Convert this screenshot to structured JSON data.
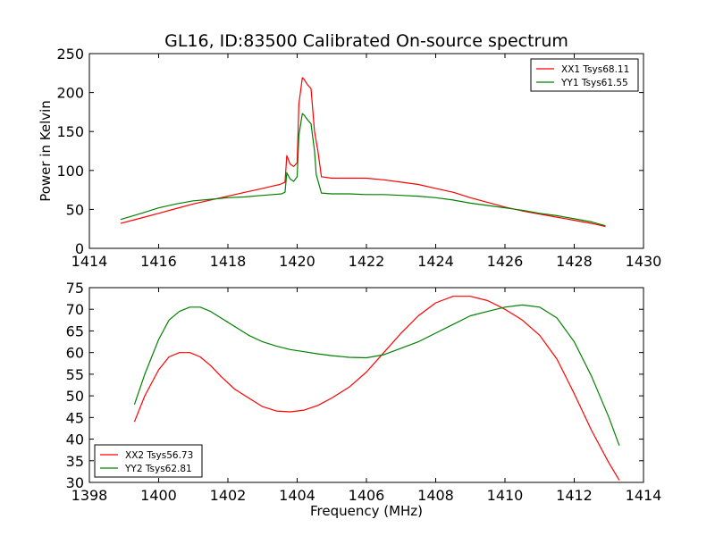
{
  "figure": {
    "title": "GL16, ID:83500 Calibrated On-source spectrum"
  },
  "chart_data": [
    {
      "type": "line",
      "title": "GL16, ID:83500 Calibrated On-source spectrum",
      "xlabel": "",
      "ylabel": "Power in Kelvin",
      "xlim": [
        1414,
        1430
      ],
      "ylim": [
        0,
        250
      ],
      "xticks": [
        1414,
        1416,
        1418,
        1420,
        1422,
        1424,
        1426,
        1428,
        1430
      ],
      "yticks": [
        0,
        50,
        100,
        150,
        200,
        250
      ],
      "grid": false,
      "legend_position": "upper right",
      "series": [
        {
          "name": "XX1 Tsys68.11",
          "color": "#ff0000",
          "x": [
            1414.9,
            1415.5,
            1416.0,
            1416.5,
            1417.0,
            1417.5,
            1418.0,
            1418.5,
            1419.0,
            1419.3,
            1419.5,
            1419.65,
            1419.7,
            1419.8,
            1419.9,
            1420.0,
            1420.05,
            1420.15,
            1420.2,
            1420.3,
            1420.4,
            1420.5,
            1420.6,
            1420.7,
            1421.0,
            1421.5,
            1422.0,
            1422.5,
            1423.0,
            1423.5,
            1424.0,
            1424.5,
            1425.0,
            1425.5,
            1426.0,
            1426.5,
            1427.0,
            1427.5,
            1428.0,
            1428.5,
            1428.9
          ],
          "y": [
            32,
            39,
            45,
            51,
            57,
            62,
            67,
            72,
            77,
            80,
            82,
            85,
            119,
            108,
            105,
            110,
            185,
            219,
            217,
            210,
            205,
            150,
            125,
            92,
            90,
            90,
            90,
            88,
            85,
            82,
            77,
            72,
            65,
            59,
            53,
            48,
            44,
            40,
            36,
            32,
            28
          ]
        },
        {
          "name": "YY1 Tsys61.55",
          "color": "#008000",
          "x": [
            1414.9,
            1415.5,
            1416.0,
            1416.5,
            1417.0,
            1417.5,
            1418.0,
            1418.5,
            1419.0,
            1419.3,
            1419.55,
            1419.65,
            1419.7,
            1419.8,
            1419.9,
            1420.0,
            1420.05,
            1420.15,
            1420.2,
            1420.3,
            1420.4,
            1420.5,
            1420.55,
            1420.7,
            1421.0,
            1421.5,
            1422.0,
            1422.5,
            1423.0,
            1423.5,
            1424.0,
            1424.5,
            1425.0,
            1425.5,
            1426.0,
            1426.5,
            1427.0,
            1427.5,
            1428.0,
            1428.5,
            1428.9
          ],
          "y": [
            37,
            45,
            52,
            57,
            61,
            63,
            65,
            66,
            68,
            69,
            70,
            72,
            97,
            89,
            86,
            92,
            145,
            173,
            171,
            165,
            160,
            125,
            95,
            71,
            70,
            70,
            69,
            69,
            68,
            67,
            65,
            62,
            58,
            55,
            52,
            49,
            45,
            42,
            38,
            34,
            29
          ]
        }
      ]
    },
    {
      "type": "line",
      "title": "",
      "xlabel": "Frequency (MHz)",
      "ylabel": "",
      "xlim": [
        1398,
        1414
      ],
      "ylim": [
        30,
        75
      ],
      "xticks": [
        1398,
        1400,
        1402,
        1404,
        1406,
        1408,
        1410,
        1412,
        1414
      ],
      "yticks": [
        30,
        35,
        40,
        45,
        50,
        55,
        60,
        65,
        70,
        75
      ],
      "grid": false,
      "legend_position": "lower left",
      "series": [
        {
          "name": "XX2 Tsys56.73",
          "color": "#ff0000",
          "x": [
            1399.3,
            1399.6,
            1400.0,
            1400.3,
            1400.6,
            1400.9,
            1401.2,
            1401.5,
            1401.8,
            1402.2,
            1402.6,
            1403.0,
            1403.4,
            1403.8,
            1404.2,
            1404.6,
            1405.0,
            1405.5,
            1406.0,
            1406.5,
            1407.0,
            1407.5,
            1408.0,
            1408.5,
            1409.0,
            1409.5,
            1410.0,
            1410.5,
            1411.0,
            1411.5,
            1412.0,
            1412.5,
            1413.0,
            1413.3
          ],
          "y": [
            44,
            50,
            56,
            59,
            60,
            60,
            59,
            57,
            54.5,
            51.5,
            49.5,
            47.5,
            46.5,
            46.3,
            46.7,
            47.8,
            49.5,
            52,
            55.5,
            60,
            64.5,
            68.5,
            71.5,
            73,
            73,
            72,
            70,
            67.5,
            64,
            58.5,
            50.5,
            42,
            34.5,
            30.5
          ]
        },
        {
          "name": "YY2 Tsys62.81",
          "color": "#008000",
          "x": [
            1399.3,
            1399.6,
            1400.0,
            1400.3,
            1400.6,
            1400.9,
            1401.2,
            1401.5,
            1401.8,
            1402.2,
            1402.6,
            1403.0,
            1403.4,
            1403.8,
            1404.2,
            1404.6,
            1405.0,
            1405.5,
            1406.0,
            1406.5,
            1407.0,
            1407.5,
            1408.0,
            1408.5,
            1409.0,
            1409.5,
            1410.0,
            1410.5,
            1411.0,
            1411.5,
            1412.0,
            1412.5,
            1413.0,
            1413.3
          ],
          "y": [
            48,
            55,
            63,
            67.5,
            69.5,
            70.5,
            70.5,
            69.5,
            68,
            66,
            64,
            62.5,
            61.5,
            60.7,
            60.2,
            59.7,
            59.3,
            58.9,
            58.8,
            59.5,
            61,
            62.5,
            64.5,
            66.5,
            68.5,
            69.5,
            70.5,
            71,
            70.5,
            68,
            62.5,
            54.5,
            45,
            38.5
          ]
        }
      ]
    }
  ]
}
